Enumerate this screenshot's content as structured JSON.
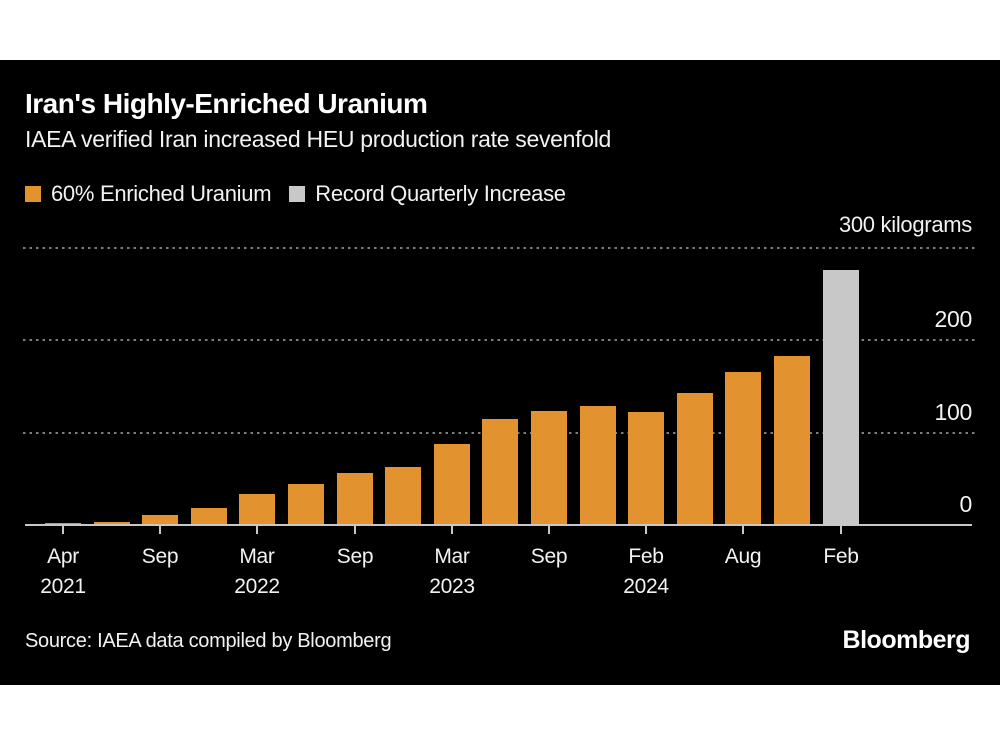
{
  "header": {
    "title": "Iran's Highly-Enriched Uranium",
    "subtitle": "IAEA verified Iran increased HEU production rate sevenfold"
  },
  "legend": {
    "items": [
      {
        "label": "60% Enriched Uranium",
        "color_key": "orange"
      },
      {
        "label": "Record Quarterly Increase",
        "color_key": "gray"
      }
    ]
  },
  "chart_data": {
    "type": "bar",
    "title": "Iran's Highly-Enriched Uranium",
    "subtitle": "IAEA verified Iran increased HEU production rate sevenfold",
    "unit_label": "300 kilograms",
    "ylabel": "kilograms",
    "ylim": [
      0,
      300
    ],
    "grid": "horizontal dotted",
    "legend_position": "top-left",
    "y_gridlines": [
      100,
      200,
      300
    ],
    "y_axis_labels": [
      {
        "value": 0,
        "label": "0"
      },
      {
        "value": 100,
        "label": "100"
      },
      {
        "value": 200,
        "label": "200"
      }
    ],
    "bars": [
      {
        "value": 1,
        "color_key": "orange"
      },
      {
        "value": 2.5,
        "color_key": "orange"
      },
      {
        "value": 10,
        "color_key": "orange"
      },
      {
        "value": 17.5,
        "color_key": "orange"
      },
      {
        "value": 33,
        "color_key": "orange"
      },
      {
        "value": 43,
        "color_key": "orange"
      },
      {
        "value": 55.5,
        "color_key": "orange"
      },
      {
        "value": 62,
        "color_key": "orange"
      },
      {
        "value": 87,
        "color_key": "orange"
      },
      {
        "value": 114,
        "color_key": "orange"
      },
      {
        "value": 122,
        "color_key": "orange"
      },
      {
        "value": 128,
        "color_key": "orange"
      },
      {
        "value": 121.5,
        "color_key": "orange"
      },
      {
        "value": 142,
        "color_key": "orange"
      },
      {
        "value": 165,
        "color_key": "orange"
      },
      {
        "value": 182,
        "color_key": "orange"
      },
      {
        "value": 275,
        "color_key": "gray"
      }
    ],
    "x_tick_labels": [
      {
        "bar_index": 0,
        "month": "Apr",
        "year": "2021"
      },
      {
        "bar_index": 2,
        "month": "Sep",
        "year": ""
      },
      {
        "bar_index": 4,
        "month": "Mar",
        "year": "2022"
      },
      {
        "bar_index": 6,
        "month": "Sep",
        "year": ""
      },
      {
        "bar_index": 8,
        "month": "Mar",
        "year": "2023"
      },
      {
        "bar_index": 10,
        "month": "Sep",
        "year": ""
      },
      {
        "bar_index": 12,
        "month": "Feb",
        "year": "2024"
      },
      {
        "bar_index": 14,
        "month": "Aug",
        "year": ""
      },
      {
        "bar_index": 16,
        "month": "Feb",
        "year": ""
      }
    ]
  },
  "footer": {
    "source": "Source: IAEA data compiled by Bloomberg",
    "logo": "Bloomberg"
  },
  "colors": {
    "orange": "#e2922f",
    "gray": "#c8c8c8",
    "card_background": "#000000",
    "page_background": "#ffffff",
    "text": "#f2f2f2",
    "title_text": "#ffffff",
    "gridline": "#7d7d7d",
    "axis": "#c8c8c8"
  }
}
